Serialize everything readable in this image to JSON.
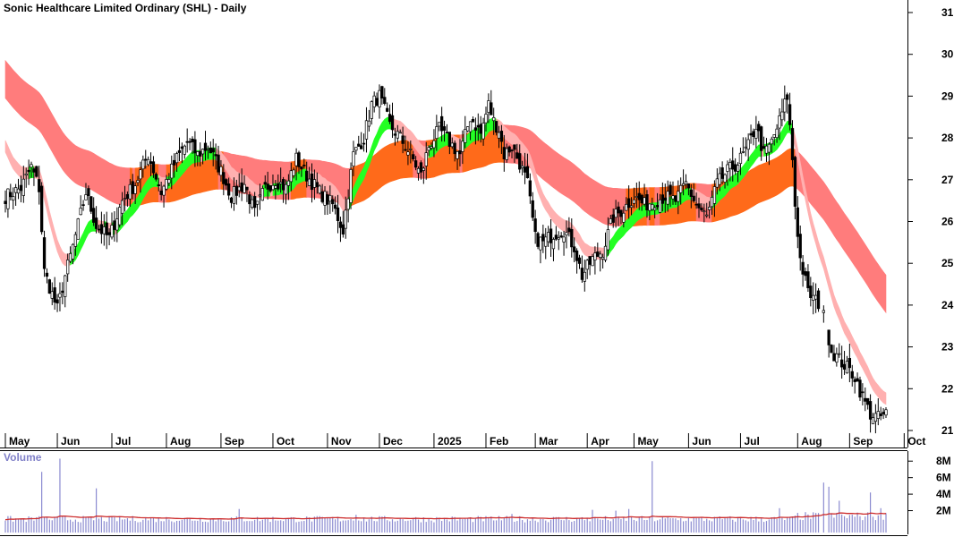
{
  "chart_data": [
    {
      "type": "candlestick",
      "title": "Sonic Healthcare Limited Ordinary (SHL) - Daily",
      "ylim": [
        20.8,
        31.3
      ],
      "y_ticks": [
        21,
        22,
        23,
        24,
        25,
        26,
        27,
        28,
        29,
        30,
        31
      ],
      "y_tick_labels": [
        "21",
        "22",
        "23",
        "24",
        "25",
        "26",
        "27",
        "28",
        "29",
        "30",
        "31"
      ],
      "x_month_labels": [
        {
          "label": "May",
          "index": 0
        },
        {
          "label": "Jun",
          "index": 20
        },
        {
          "label": "Jul",
          "index": 41
        },
        {
          "label": "Aug",
          "index": 62
        },
        {
          "label": "Sep",
          "index": 83
        },
        {
          "label": "Oct",
          "index": 103
        },
        {
          "label": "Nov",
          "index": 124
        },
        {
          "label": "Dec",
          "index": 144
        },
        {
          "label": "2025",
          "index": 165
        },
        {
          "label": "Feb",
          "index": 185
        },
        {
          "label": "Mar",
          "index": 204
        },
        {
          "label": "Apr",
          "index": 224
        },
        {
          "label": "May",
          "index": 242
        },
        {
          "label": "Jun",
          "index": 263
        },
        {
          "label": "Jul",
          "index": 283
        },
        {
          "label": "Aug",
          "index": 305
        },
        {
          "label": "Sep",
          "index": 325
        },
        {
          "label": "Oct",
          "index": 346
        }
      ],
      "total_sessions": 340,
      "close_anchors": [
        [
          0,
          26.6
        ],
        [
          6,
          26.8
        ],
        [
          10,
          27.3
        ],
        [
          13,
          26.8
        ],
        [
          15,
          24.8
        ],
        [
          20,
          23.9
        ],
        [
          23,
          24.7
        ],
        [
          26,
          25.4
        ],
        [
          31,
          26.7
        ],
        [
          35,
          25.9
        ],
        [
          40,
          25.6
        ],
        [
          45,
          26.5
        ],
        [
          50,
          26.9
        ],
        [
          55,
          27.6
        ],
        [
          60,
          26.7
        ],
        [
          66,
          27.5
        ],
        [
          70,
          27.9
        ],
        [
          74,
          27.6
        ],
        [
          78,
          27.8
        ],
        [
          83,
          27.2
        ],
        [
          87,
          26.6
        ],
        [
          92,
          26.9
        ],
        [
          96,
          26.2
        ],
        [
          100,
          26.8
        ],
        [
          104,
          27.0
        ],
        [
          108,
          26.8
        ],
        [
          112,
          27.5
        ],
        [
          116,
          27.1
        ],
        [
          121,
          26.7
        ],
        [
          126,
          26.4
        ],
        [
          130,
          25.8
        ],
        [
          134,
          27.6
        ],
        [
          138,
          28.0
        ],
        [
          141,
          28.8
        ],
        [
          144,
          29.0
        ],
        [
          148,
          28.3
        ],
        [
          152,
          28.0
        ],
        [
          156,
          27.6
        ],
        [
          160,
          27.1
        ],
        [
          163,
          27.8
        ],
        [
          167,
          28.2
        ],
        [
          171,
          27.9
        ],
        [
          175,
          27.6
        ],
        [
          179,
          28.5
        ],
        [
          183,
          28.1
        ],
        [
          186,
          28.8
        ],
        [
          188,
          28.4
        ],
        [
          190,
          28.2
        ],
        [
          192,
          27.6
        ],
        [
          195,
          27.8
        ],
        [
          198,
          27.4
        ],
        [
          201,
          26.9
        ],
        [
          204,
          25.6
        ],
        [
          207,
          25.5
        ],
        [
          211,
          25.7
        ],
        [
          215,
          25.8
        ],
        [
          219,
          25.4
        ],
        [
          222,
          24.7
        ],
        [
          226,
          25.1
        ],
        [
          230,
          25.3
        ],
        [
          234,
          26.1
        ],
        [
          238,
          26.3
        ],
        [
          242,
          26.6
        ],
        [
          246,
          26.4
        ],
        [
          250,
          26.5
        ],
        [
          254,
          26.6
        ],
        [
          258,
          26.5
        ],
        [
          262,
          26.9
        ],
        [
          266,
          26.4
        ],
        [
          270,
          26.1
        ],
        [
          274,
          26.9
        ],
        [
          278,
          27.2
        ],
        [
          282,
          27.4
        ],
        [
          286,
          27.8
        ],
        [
          289,
          28.3
        ],
        [
          292,
          27.6
        ],
        [
          295,
          27.9
        ],
        [
          298,
          28.4
        ],
        [
          301,
          29.0
        ],
        [
          303,
          27.5
        ],
        [
          304,
          26.4
        ],
        [
          306,
          25.1
        ],
        [
          309,
          24.3
        ],
        [
          312,
          24.1
        ],
        [
          314,
          24.0
        ],
        [
          318,
          22.9
        ],
        [
          321,
          22.7
        ],
        [
          324,
          22.5
        ],
        [
          327,
          22.3
        ],
        [
          330,
          21.8
        ],
        [
          333,
          21.4
        ],
        [
          336,
          21.3
        ],
        [
          339,
          21.4
        ]
      ],
      "gaps_after": [
        314,
        316
      ],
      "ma_bands": [
        {
          "name": "long",
          "color_above": "#ff7c7c",
          "color_below": "#ff6a1a",
          "width_data": 0.6
        },
        {
          "name": "short",
          "color_above": "#ffb0b0",
          "color_below": "#23ff23",
          "width_data": 0.3
        }
      ]
    },
    {
      "type": "bar",
      "ylabel": "Volume",
      "ylim": [
        0,
        9
      ],
      "y_ticks": [
        2,
        4,
        6,
        8
      ],
      "y_tick_labels": [
        "2M",
        "4M",
        "6M",
        "8M"
      ],
      "unit": "millions",
      "spikes": [
        [
          14,
          6.7
        ],
        [
          21,
          8.3
        ],
        [
          35,
          4.7
        ],
        [
          90,
          2.2
        ],
        [
          135,
          1.5
        ],
        [
          195,
          1.6
        ],
        [
          226,
          2.1
        ],
        [
          235,
          2.0
        ],
        [
          240,
          2.2
        ],
        [
          249,
          8.0
        ],
        [
          298,
          2.3
        ],
        [
          315,
          5.4
        ],
        [
          317,
          4.9
        ],
        [
          321,
          3.2
        ],
        [
          333,
          4.2
        ],
        [
          337,
          2.3
        ],
        [
          339,
          1.7
        ]
      ],
      "base_volume": 1.05,
      "average_line_color": "#cc2a2a",
      "bar_color": "#8a8ad0"
    }
  ]
}
